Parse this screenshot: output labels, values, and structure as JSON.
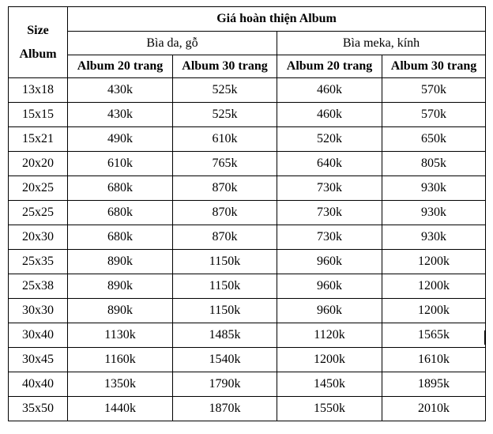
{
  "table": {
    "corner": [
      "Size",
      "Album"
    ],
    "title": "Giá hoàn thiện Album",
    "groups": [
      "Bìa da, gỗ",
      "Bìa meka, kính"
    ],
    "columns": [
      "Album 20 trang",
      "Album 30 trang",
      "Album 20 trang",
      "Album 30 trang"
    ],
    "rows": [
      [
        "13x18",
        "430k",
        "525k",
        "460k",
        "570k"
      ],
      [
        "15x15",
        "430k",
        "525k",
        "460k",
        "570k"
      ],
      [
        "15x21",
        "490k",
        "610k",
        "520k",
        "650k"
      ],
      [
        "20x20",
        "610k",
        "765k",
        "640k",
        "805k"
      ],
      [
        "20x25",
        "680k",
        "870k",
        "730k",
        "930k"
      ],
      [
        "25x25",
        "680k",
        "870k",
        "730k",
        "930k"
      ],
      [
        "20x30",
        "680k",
        "870k",
        "730k",
        "930k"
      ],
      [
        "25x35",
        "890k",
        "1150k",
        "960k",
        "1200k"
      ],
      [
        "25x38",
        "890k",
        "1150k",
        "960k",
        "1200k"
      ],
      [
        "30x30",
        "890k",
        "1150k",
        "960k",
        "1200k"
      ],
      [
        "30x40",
        "1130k",
        "1485k",
        "1120k",
        "1565k"
      ],
      [
        "30x45",
        "1160k",
        "1540k",
        "1200k",
        "1610k"
      ],
      [
        "40x40",
        "1350k",
        "1790k",
        "1450k",
        "1895k"
      ],
      [
        "35x50",
        "1440k",
        "1870k",
        "1550k",
        "2010k"
      ]
    ]
  }
}
